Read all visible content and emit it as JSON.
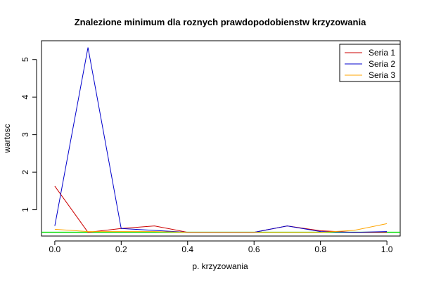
{
  "chart_data": {
    "type": "line",
    "title": "Znalezione minimum dla roznych prawdopodobienstw krzyzowania",
    "xlabel": "p. krzyzowania",
    "ylabel": "wartosc",
    "xlim": [
      -0.04,
      1.04
    ],
    "ylim": [
      0.3,
      5.5
    ],
    "xticks": [
      0.0,
      0.2,
      0.4,
      0.6,
      0.8,
      1.0
    ],
    "xtick_labels": [
      "0.0",
      "0.2",
      "0.4",
      "0.6",
      "0.8",
      "1.0"
    ],
    "yticks": [
      1,
      2,
      3,
      4,
      5
    ],
    "ytick_labels": [
      "1",
      "2",
      "3",
      "4",
      "5"
    ],
    "x": [
      0.0,
      0.1,
      0.2,
      0.3,
      0.4,
      0.5,
      0.6,
      0.7,
      0.8,
      0.9,
      1.0
    ],
    "series": [
      {
        "name": "Seria 1",
        "color": "#cc0000",
        "values": [
          1.63,
          0.4,
          0.5,
          0.57,
          0.4,
          0.4,
          0.4,
          0.57,
          0.44,
          0.4,
          0.4
        ]
      },
      {
        "name": "Seria 2",
        "color": "#0000cc",
        "values": [
          0.57,
          5.32,
          0.5,
          0.45,
          0.4,
          0.4,
          0.4,
          0.57,
          0.42,
          0.4,
          0.42
        ]
      },
      {
        "name": "Seria 3",
        "color": "#ffa500",
        "values": [
          0.48,
          0.42,
          0.42,
          0.42,
          0.4,
          0.4,
          0.4,
          0.4,
          0.4,
          0.45,
          0.63
        ]
      }
    ],
    "reference_line": {
      "y": 0.4,
      "color": "#00dd00"
    },
    "grid": false,
    "legend_position": "top-right"
  }
}
